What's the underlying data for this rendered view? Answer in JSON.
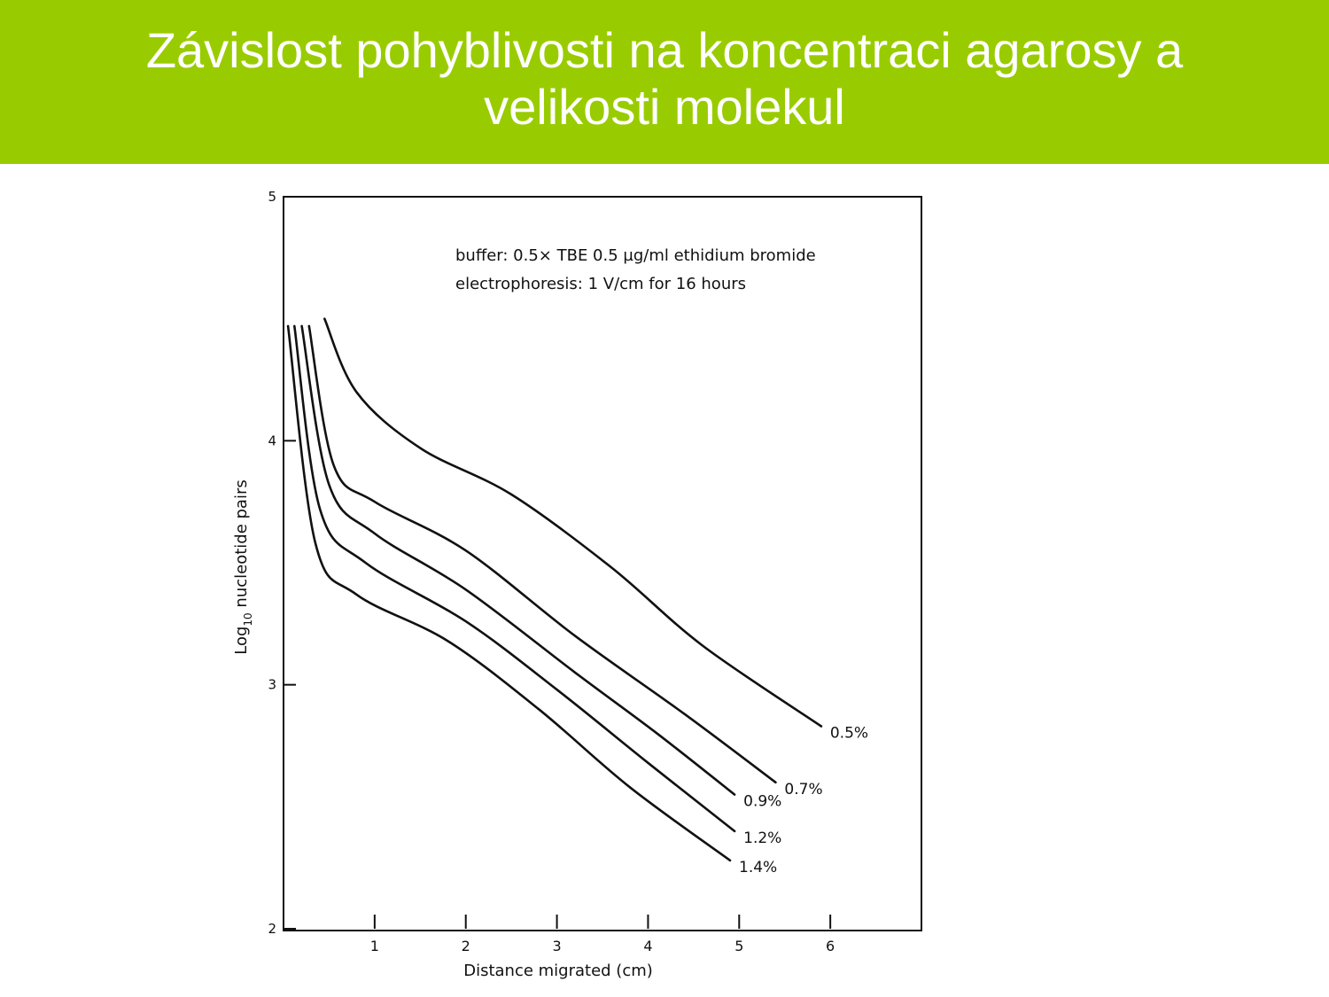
{
  "slide": {
    "title_line1": "Závislost pohyblivosti na koncentraci agarosy a",
    "title_line2": "velikosti molekul"
  },
  "colors": {
    "banner": "#99cc00",
    "title_text": "#ffffff",
    "ink": "#111111"
  },
  "chart_data": {
    "type": "line",
    "xlabel": "Distance migrated (cm)",
    "ylabel_main": "Log",
    "ylabel_sub": "10",
    "ylabel_rest": " nucleotide pairs",
    "xlim": [
      0,
      7
    ],
    "ylim": [
      2,
      5
    ],
    "x_ticks": [
      1,
      2,
      3,
      4,
      5,
      6
    ],
    "x_tick_labels": [
      "1",
      "2",
      "3",
      "4",
      "5",
      "6"
    ],
    "y_ticks": [
      2,
      3,
      4,
      5
    ],
    "y_tick_labels": [
      "2",
      "3",
      "4",
      "5"
    ],
    "annotations": [
      "buffer: 0.5× TBE 0.5 µg/ml ethidium bromide",
      "electrophoresis: 1 V/cm for 16 hours"
    ],
    "series": [
      {
        "name": "0.5%",
        "x": [
          0.45,
          0.8,
          1.5,
          2.5,
          3.6,
          4.6,
          5.9
        ],
        "y": [
          4.5,
          4.2,
          3.97,
          3.78,
          3.48,
          3.16,
          2.83
        ]
      },
      {
        "name": "0.7%",
        "x": [
          0.28,
          0.55,
          1.0,
          2.0,
          3.2,
          4.4,
          5.4
        ],
        "y": [
          4.47,
          3.9,
          3.75,
          3.55,
          3.2,
          2.88,
          2.6
        ]
      },
      {
        "name": "0.9%",
        "x": [
          0.2,
          0.5,
          1.0,
          2.0,
          3.2,
          4.1,
          4.95
        ],
        "y": [
          4.47,
          3.82,
          3.62,
          3.39,
          3.05,
          2.8,
          2.55
        ]
      },
      {
        "name": "1.2%",
        "x": [
          0.12,
          0.4,
          0.9,
          2.0,
          3.0,
          4.0,
          4.95
        ],
        "y": [
          4.47,
          3.72,
          3.5,
          3.26,
          2.98,
          2.68,
          2.4
        ]
      },
      {
        "name": "1.4%",
        "x": [
          0.05,
          0.35,
          0.8,
          1.8,
          2.8,
          3.8,
          4.9
        ],
        "y": [
          4.47,
          3.58,
          3.37,
          3.18,
          2.9,
          2.58,
          2.28
        ]
      }
    ]
  }
}
